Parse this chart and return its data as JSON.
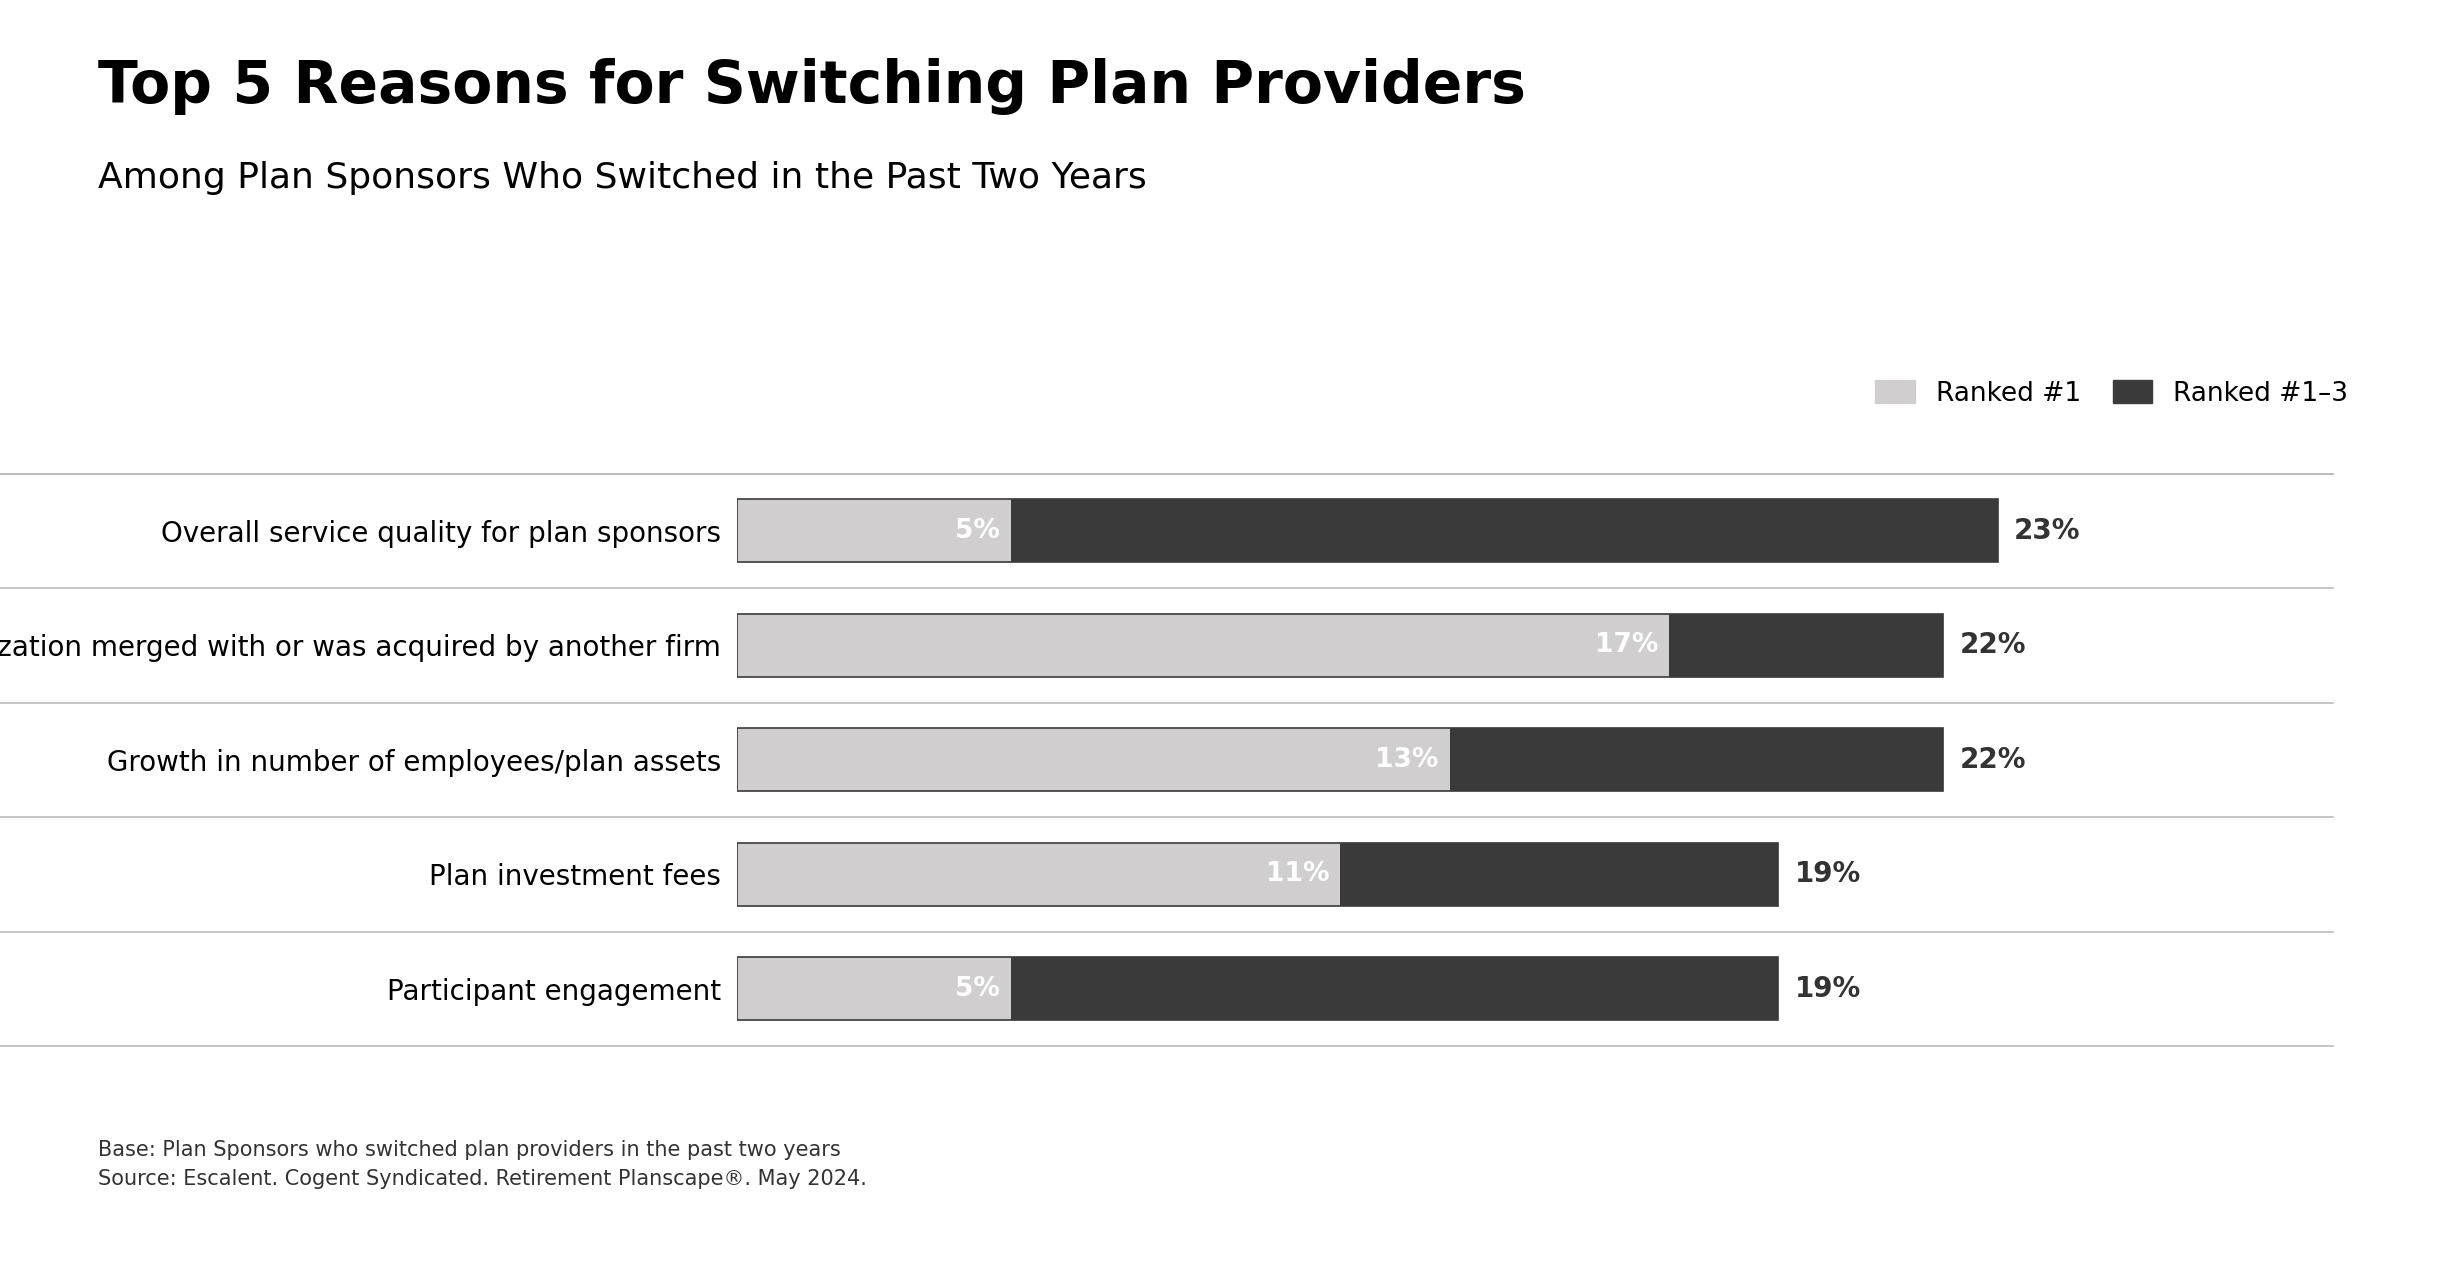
{
  "title": "Top 5 Reasons for Switching Plan Providers",
  "subtitle": "Among Plan Sponsors Who Switched in the Past Two Years",
  "categories": [
    "Overall service quality for plan sponsors",
    "My organization merged with or was acquired by another firm",
    "Growth in number of employees/plan assets",
    "Plan investment fees",
    "Participant engagement"
  ],
  "ranked1_values": [
    5,
    17,
    13,
    11,
    5
  ],
  "ranked13_values": [
    23,
    22,
    22,
    19,
    19
  ],
  "ranked1_label": "Ranked #1",
  "ranked13_label": "Ranked #1–3",
  "ranked1_color": "#d0cece",
  "ranked13_color": "#3a3a3a",
  "bar_outline_color": "#3a3a3a",
  "ranked1_label_color": "#ffffff",
  "ranked13_label_color": "#333333",
  "footnote_line1": "Base: Plan Sponsors who switched plan providers in the past two years",
  "footnote_line2": "Source: Escalent. Cogent Syndicated. Retirement Planscape®. May 2024.",
  "background_color": "#ffffff",
  "bar_height": 0.55,
  "xlim_max": 26,
  "title_fontsize": 42,
  "subtitle_fontsize": 26,
  "category_fontsize": 20,
  "bar_label_fontsize": 19,
  "legend_fontsize": 19,
  "footnote_fontsize": 15,
  "outside_label_fontsize": 20,
  "separator_color": "#bbbbbb",
  "separator_linewidth": 1.2
}
